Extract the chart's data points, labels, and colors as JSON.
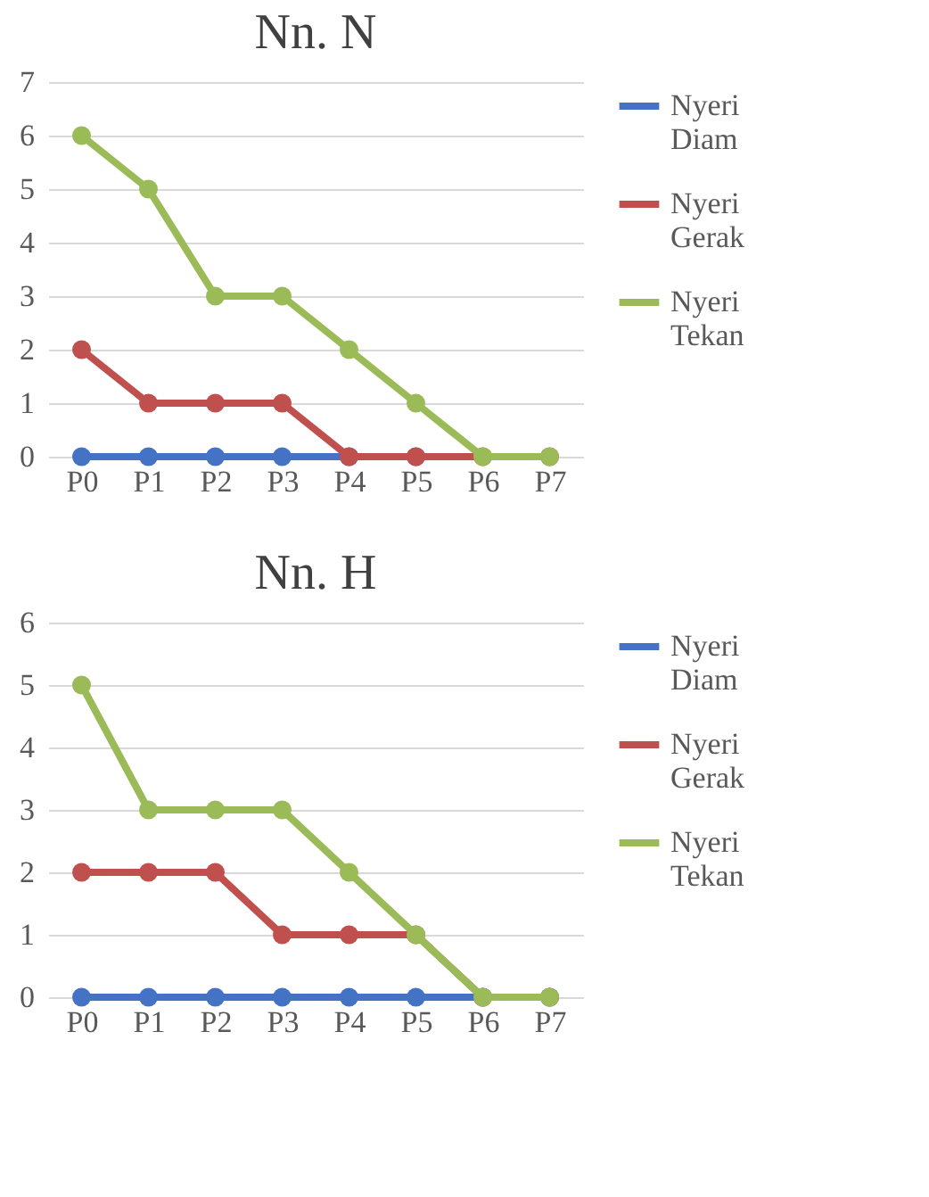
{
  "chart_data": [
    {
      "type": "line",
      "title": "Nn. N",
      "categories": [
        "P0",
        "P1",
        "P2",
        "P3",
        "P4",
        "P5",
        "P6",
        "P7"
      ],
      "ylim": [
        0,
        7
      ],
      "yticks": [
        0,
        1,
        2,
        3,
        4,
        5,
        6,
        7
      ],
      "grid": "y",
      "legend": "right",
      "marker": "circle",
      "line_style": "solid",
      "series": [
        {
          "name": "Nyeri Diam",
          "color": "#4472c4",
          "values": [
            0,
            0,
            0,
            0,
            0,
            0,
            null,
            null
          ]
        },
        {
          "name": "Nyeri Gerak",
          "color": "#c0504d",
          "values": [
            2,
            1,
            1,
            1,
            0,
            0,
            0,
            0
          ]
        },
        {
          "name": "Nyeri Tekan",
          "color": "#9bbb59",
          "values": [
            6,
            5,
            3,
            3,
            2,
            1,
            0,
            0
          ]
        }
      ]
    },
    {
      "type": "line",
      "title": "Nn. H",
      "categories": [
        "P0",
        "P1",
        "P2",
        "P3",
        "P4",
        "P5",
        "P6",
        "P7"
      ],
      "ylim": [
        0,
        6
      ],
      "yticks": [
        0,
        1,
        2,
        3,
        4,
        5,
        6
      ],
      "grid": "y",
      "legend": "right",
      "marker": "circle",
      "line_style": "solid",
      "series": [
        {
          "name": "Nyeri Diam",
          "color": "#4472c4",
          "values": [
            0,
            0,
            0,
            0,
            0,
            0,
            0,
            0
          ]
        },
        {
          "name": "Nyeri Gerak",
          "color": "#c0504d",
          "values": [
            2,
            2,
            2,
            1,
            1,
            1,
            0,
            0
          ]
        },
        {
          "name": "Nyeri Tekan",
          "color": "#9bbb59",
          "values": [
            5,
            3,
            3,
            3,
            2,
            1,
            0,
            0
          ]
        }
      ]
    }
  ]
}
